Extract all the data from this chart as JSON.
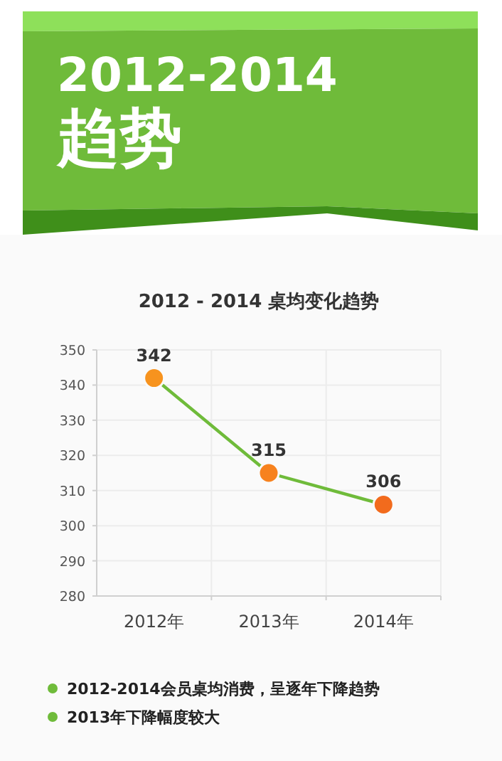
{
  "chart_data": {
    "type": "line",
    "title": "2012-2014 趋势",
    "subtitle": "2012 - 2014 桌均变化趋势",
    "categories": [
      "2012年",
      "2013年",
      "2014年"
    ],
    "series": [
      {
        "color": "#6fbb3a",
        "colors": [
          "#f7931e",
          "#f7821e",
          "#f26b1d"
        ],
        "values": [
          342,
          315,
          306
        ]
      }
    ],
    "ylim": [
      280,
      350
    ],
    "yticks": [
      280,
      290,
      300,
      310,
      320,
      330,
      340,
      350
    ],
    "grid": true,
    "marker": "circle",
    "line_style": "solid",
    "data_labels": true,
    "annotations": [
      "2012-2014会员桌均消费，呈逐年下降趋势",
      "2013年下降幅度较大"
    ]
  }
}
